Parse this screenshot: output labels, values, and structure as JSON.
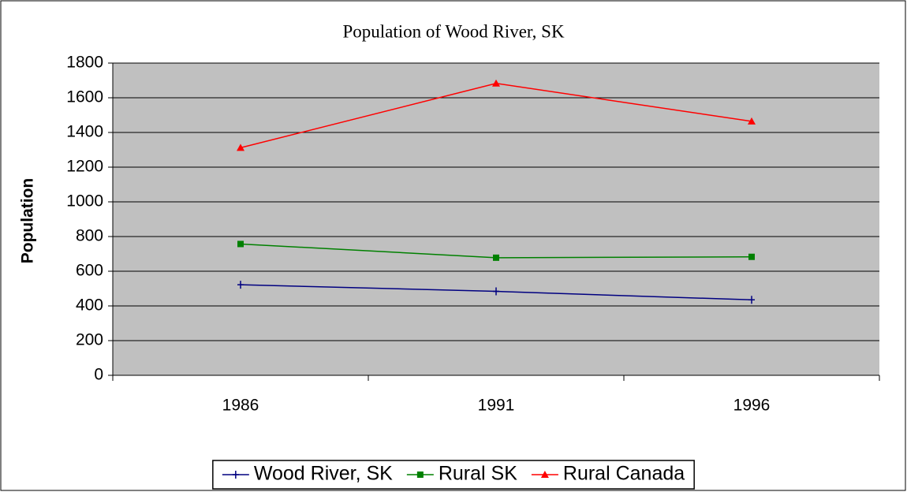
{
  "chart_data": {
    "type": "line",
    "title": "Population of Wood River, SK",
    "y_label": "Population",
    "categories": [
      "1986",
      "1991",
      "1996"
    ],
    "series": [
      {
        "name": "Wood River, SK",
        "color": "#000080",
        "marker": "plus",
        "values": [
          522,
          484,
          435
        ]
      },
      {
        "name": "Rural SK",
        "color": "#008000",
        "marker": "square",
        "values": [
          757,
          678,
          683
        ]
      },
      {
        "name": "Rural Canada",
        "color": "#ff0000",
        "marker": "triangle",
        "values": [
          1312,
          1683,
          1464
        ]
      }
    ],
    "ylim": [
      0,
      1800
    ],
    "yticks": [
      0,
      200,
      400,
      600,
      800,
      1000,
      1200,
      1400,
      1600,
      1800
    ],
    "grid": true,
    "legend": "bottom"
  }
}
